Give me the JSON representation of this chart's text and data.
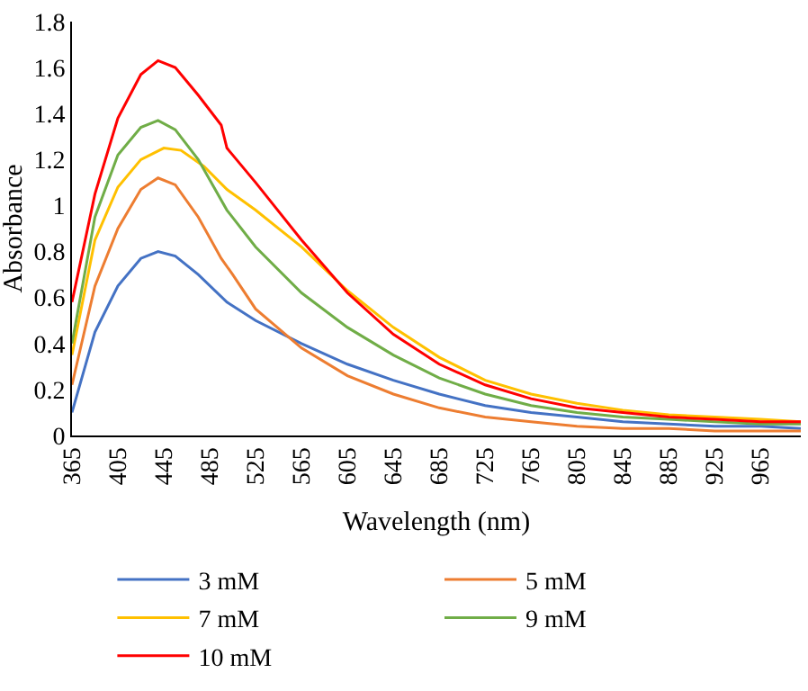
{
  "chart_data": {
    "type": "line",
    "xlabel": "Wavelength (nm)",
    "ylabel": "Absorbance",
    "xlim": [
      365,
      1000
    ],
    "xticks": [
      365,
      405,
      445,
      485,
      525,
      565,
      605,
      645,
      685,
      725,
      765,
      805,
      845,
      885,
      925,
      965
    ],
    "ylim": [
      0,
      1.8
    ],
    "yticks": [
      0,
      0.2,
      0.4,
      0.6,
      0.8,
      1,
      1.2,
      1.4,
      1.6,
      1.8
    ],
    "grid": false,
    "legend": "bottom",
    "marker": "none",
    "line_style": "solid",
    "series": [
      {
        "name": "3 mM",
        "color": "#4472c4",
        "x": [
          365,
          385,
          405,
          425,
          440,
          455,
          475,
          500,
          525,
          565,
          605,
          645,
          685,
          725,
          765,
          805,
          845,
          885,
          925,
          965,
          1000
        ],
        "values": [
          0.1,
          0.45,
          0.65,
          0.77,
          0.8,
          0.78,
          0.7,
          0.58,
          0.5,
          0.4,
          0.31,
          0.24,
          0.18,
          0.13,
          0.1,
          0.08,
          0.06,
          0.05,
          0.04,
          0.04,
          0.03
        ]
      },
      {
        "name": "5 mM",
        "color": "#ed7d31",
        "x": [
          365,
          385,
          405,
          425,
          440,
          455,
          475,
          495,
          505,
          525,
          565,
          605,
          645,
          685,
          725,
          765,
          805,
          845,
          885,
          925,
          1000
        ],
        "values": [
          0.22,
          0.65,
          0.9,
          1.07,
          1.12,
          1.09,
          0.95,
          0.77,
          0.7,
          0.55,
          0.38,
          0.26,
          0.18,
          0.12,
          0.08,
          0.06,
          0.04,
          0.03,
          0.03,
          0.02,
          0.02
        ]
      },
      {
        "name": "7 mM",
        "color": "#ffc000",
        "x": [
          365,
          385,
          405,
          425,
          445,
          460,
          480,
          500,
          525,
          565,
          605,
          645,
          685,
          725,
          765,
          805,
          845,
          885,
          925,
          965,
          1000
        ],
        "values": [
          0.35,
          0.85,
          1.08,
          1.2,
          1.25,
          1.24,
          1.17,
          1.07,
          0.98,
          0.82,
          0.63,
          0.47,
          0.34,
          0.24,
          0.18,
          0.14,
          0.11,
          0.09,
          0.08,
          0.07,
          0.06
        ]
      },
      {
        "name": "9 mM",
        "color": "#70ad47",
        "x": [
          365,
          385,
          405,
          425,
          440,
          455,
          475,
          500,
          525,
          565,
          605,
          645,
          685,
          725,
          765,
          805,
          845,
          885,
          925,
          965,
          1000
        ],
        "values": [
          0.4,
          0.95,
          1.22,
          1.34,
          1.37,
          1.33,
          1.2,
          0.98,
          0.82,
          0.62,
          0.47,
          0.35,
          0.25,
          0.18,
          0.13,
          0.1,
          0.08,
          0.07,
          0.06,
          0.05,
          0.05
        ]
      },
      {
        "name": "10 mM",
        "color": "#ff0000",
        "x": [
          365,
          385,
          405,
          425,
          440,
          455,
          475,
          495,
          500,
          525,
          565,
          605,
          645,
          685,
          725,
          765,
          805,
          845,
          885,
          925,
          965,
          1000
        ],
        "values": [
          0.58,
          1.05,
          1.38,
          1.57,
          1.63,
          1.6,
          1.48,
          1.35,
          1.25,
          1.1,
          0.85,
          0.62,
          0.44,
          0.31,
          0.22,
          0.16,
          0.12,
          0.1,
          0.08,
          0.07,
          0.06,
          0.06
        ]
      }
    ]
  }
}
